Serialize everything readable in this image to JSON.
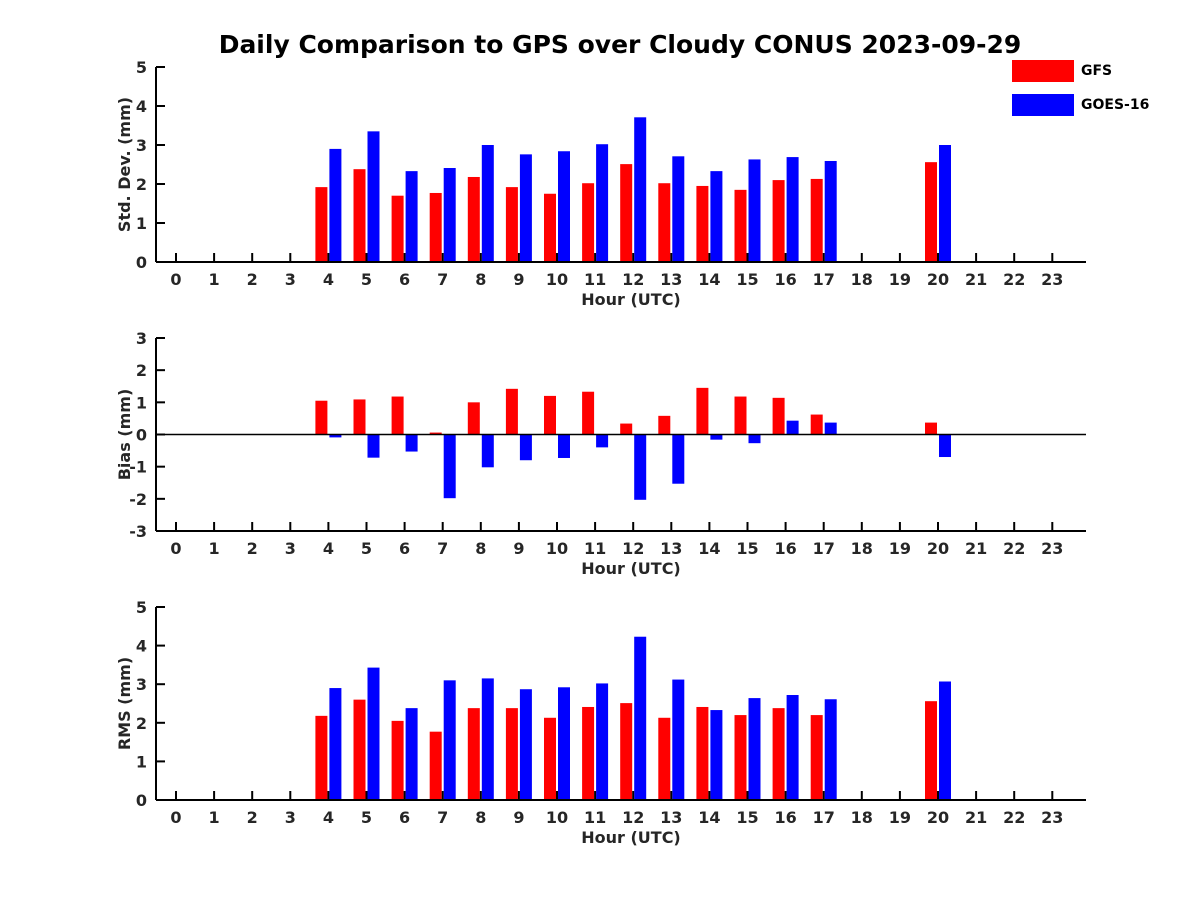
{
  "figure_title": "Daily Comparison to GPS over Cloudy CONUS 2023-09-29",
  "colors": {
    "gfs": "#ff0000",
    "goes": "#0000ff",
    "axis": "#000000",
    "text": "#262626"
  },
  "legend": [
    {
      "label": "GFS",
      "color": "#ff0000"
    },
    {
      "label": "GOES-16",
      "color": "#0000ff"
    }
  ],
  "chart_data": [
    {
      "type": "bar",
      "title": "Daily Comparison to GPS over Cloudy CONUS 2023-09-29",
      "xlabel": "Hour (UTC)",
      "ylabel": "Std. Dev. (mm)",
      "categories": [
        "0",
        "1",
        "2",
        "3",
        "4",
        "5",
        "6",
        "7",
        "8",
        "9",
        "10",
        "11",
        "12",
        "13",
        "14",
        "15",
        "16",
        "17",
        "18",
        "19",
        "20",
        "21",
        "22",
        "23"
      ],
      "ylim": [
        0,
        5
      ],
      "yticks": [
        0,
        1,
        2,
        3,
        4,
        5
      ],
      "grid": false,
      "legend_position": "top-right",
      "series": [
        {
          "name": "GFS",
          "color": "#ff0000",
          "values": [
            null,
            null,
            null,
            null,
            1.92,
            2.38,
            1.7,
            1.77,
            2.18,
            1.92,
            1.75,
            2.02,
            2.51,
            2.02,
            1.95,
            1.85,
            2.1,
            2.13,
            null,
            null,
            2.56,
            null,
            null,
            null
          ]
        },
        {
          "name": "GOES-16",
          "color": "#0000ff",
          "values": [
            null,
            null,
            null,
            null,
            2.9,
            3.35,
            2.33,
            2.41,
            3.0,
            2.76,
            2.84,
            3.02,
            3.71,
            2.71,
            2.33,
            2.63,
            2.69,
            2.59,
            null,
            null,
            3.0,
            null,
            null,
            null
          ]
        }
      ]
    },
    {
      "type": "bar",
      "xlabel": "Hour (UTC)",
      "ylabel": "Bias (mm)",
      "categories": [
        "0",
        "1",
        "2",
        "3",
        "4",
        "5",
        "6",
        "7",
        "8",
        "9",
        "10",
        "11",
        "12",
        "13",
        "14",
        "15",
        "16",
        "17",
        "18",
        "19",
        "20",
        "21",
        "22",
        "23"
      ],
      "ylim": [
        -3,
        3
      ],
      "yticks": [
        -3,
        -2,
        -1,
        0,
        1,
        2,
        3
      ],
      "grid": false,
      "zero_line": true,
      "series": [
        {
          "name": "GFS",
          "color": "#ff0000",
          "values": [
            null,
            null,
            null,
            null,
            1.05,
            1.09,
            1.18,
            0.06,
            1.0,
            1.42,
            1.2,
            1.33,
            0.34,
            0.58,
            1.45,
            1.18,
            1.14,
            0.62,
            null,
            null,
            0.37,
            null,
            null,
            null
          ]
        },
        {
          "name": "GOES-16",
          "color": "#0000ff",
          "values": [
            null,
            null,
            null,
            null,
            -0.09,
            -0.72,
            -0.53,
            -1.98,
            -1.02,
            -0.8,
            -0.73,
            -0.4,
            -2.03,
            -1.53,
            -0.16,
            -0.27,
            0.43,
            0.37,
            null,
            null,
            -0.7,
            null,
            null,
            null
          ]
        }
      ]
    },
    {
      "type": "bar",
      "xlabel": "Hour (UTC)",
      "ylabel": "RMS (mm)",
      "categories": [
        "0",
        "1",
        "2",
        "3",
        "4",
        "5",
        "6",
        "7",
        "8",
        "9",
        "10",
        "11",
        "12",
        "13",
        "14",
        "15",
        "16",
        "17",
        "18",
        "19",
        "20",
        "21",
        "22",
        "23"
      ],
      "ylim": [
        0,
        5
      ],
      "yticks": [
        0,
        1,
        2,
        3,
        4,
        5
      ],
      "grid": false,
      "series": [
        {
          "name": "GFS",
          "color": "#ff0000",
          "values": [
            null,
            null,
            null,
            null,
            2.18,
            2.6,
            2.05,
            1.77,
            2.38,
            2.38,
            2.13,
            2.41,
            2.51,
            2.13,
            2.41,
            2.2,
            2.38,
            2.2,
            null,
            null,
            2.56,
            null,
            null,
            null
          ]
        },
        {
          "name": "GOES-16",
          "color": "#0000ff",
          "values": [
            null,
            null,
            null,
            null,
            2.9,
            3.43,
            2.38,
            3.1,
            3.15,
            2.87,
            2.92,
            3.02,
            4.23,
            3.12,
            2.33,
            2.64,
            2.72,
            2.61,
            null,
            null,
            3.07,
            null,
            null,
            null
          ]
        }
      ]
    }
  ]
}
